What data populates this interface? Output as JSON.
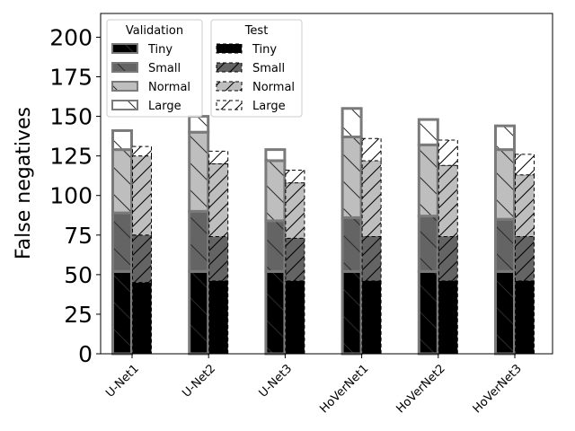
{
  "chart_data": {
    "type": "bar",
    "stacked": true,
    "ylabel": "False negatives",
    "ylim": [
      0,
      215
    ],
    "yticks": [
      "0",
      "25",
      "50",
      "75",
      "100",
      "125",
      "150",
      "175",
      "200"
    ],
    "categories": [
      "U-Net1",
      "U-Net2",
      "U-Net3",
      "HoVerNet1",
      "HoVerNet2",
      "HoVerNet3"
    ],
    "stack_order": [
      "Tiny",
      "Small",
      "Normal",
      "Large"
    ],
    "segment_colors": {
      "Tiny": "#000000",
      "Small": "#646464",
      "Normal": "#bebebe",
      "Large": "#ffffff"
    },
    "groups": [
      {
        "name": "Validation",
        "values": {
          "Tiny": [
            52,
            52,
            52,
            52,
            52,
            52
          ],
          "Small": [
            37,
            38,
            32,
            34,
            35,
            33
          ],
          "Normal": [
            40,
            50,
            38,
            51,
            45,
            44
          ],
          "Large": [
            12,
            10,
            7,
            18,
            16,
            15
          ]
        }
      },
      {
        "name": "Test",
        "values": {
          "Tiny": [
            45,
            46,
            46,
            46,
            46,
            46
          ],
          "Small": [
            30,
            28,
            27,
            28,
            28,
            28
          ],
          "Normal": [
            50,
            46,
            35,
            48,
            45,
            39
          ],
          "Large": [
            6,
            8,
            8,
            14,
            16,
            13
          ]
        }
      }
    ],
    "legend": {
      "placement": "top-left",
      "entries": [
        {
          "title": "Validation",
          "items": [
            "Tiny",
            "Small",
            "Normal",
            "Large"
          ]
        },
        {
          "title": "Test",
          "items": [
            "Tiny",
            "Small",
            "Normal",
            "Large"
          ]
        }
      ]
    },
    "grid": false
  }
}
